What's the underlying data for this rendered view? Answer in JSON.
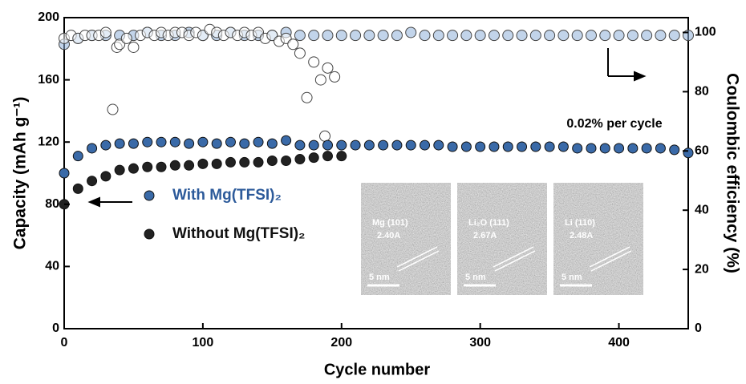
{
  "chart_data": {
    "type": "scatter",
    "xlabel": "Cycle number",
    "ylabel": "Capacity (mAh g⁻¹)",
    "y2label": "Coulombic efficiency (%)",
    "xlim": [
      0,
      450
    ],
    "xticks": [
      0,
      100,
      200,
      300,
      400
    ],
    "ylim": [
      0,
      200
    ],
    "yticks": [
      0,
      40,
      80,
      120,
      160,
      200
    ],
    "y2lim": [
      0,
      105
    ],
    "y2ticks": [
      0,
      20,
      40,
      60,
      80,
      100
    ],
    "annotations": [
      "0.02% per cycle"
    ],
    "insets": [
      {
        "labels": [
          "Mg (101)",
          "2.40A",
          "5 nm"
        ]
      },
      {
        "labels": [
          "Li₂O (111)",
          "2.67A",
          "5 nm"
        ]
      },
      {
        "labels": [
          "Li (110)",
          "2.48A",
          "5 nm"
        ]
      }
    ],
    "series": [
      {
        "color": "#8fb0d8",
        "marker": "open",
        "axis": "y2",
        "x": [
          0,
          10,
          20,
          30,
          40,
          50,
          60,
          70,
          80,
          90,
          100,
          110,
          120,
          130,
          140,
          150,
          160,
          170,
          180,
          190,
          200,
          210,
          220,
          230,
          240,
          250,
          260,
          270,
          280,
          290,
          300,
          310,
          320,
          330,
          340,
          350,
          360,
          370,
          380,
          390,
          400,
          410,
          420,
          430,
          440,
          450
        ],
        "values": [
          96,
          98,
          99,
          99,
          99,
          99,
          100,
          99,
          99,
          100,
          99,
          99,
          100,
          99,
          99,
          99,
          100,
          99,
          99,
          99,
          99,
          99,
          99,
          99,
          99,
          100,
          99,
          99,
          99,
          99,
          99,
          99,
          99,
          99,
          99,
          99,
          99,
          99,
          99,
          99,
          99,
          99,
          99,
          99,
          99,
          99
        ]
      },
      {
        "color": "#555555",
        "marker": "open",
        "axis": "y2",
        "x": [
          0,
          5,
          10,
          15,
          20,
          25,
          30,
          35,
          38,
          40,
          45,
          50,
          55,
          60,
          65,
          70,
          75,
          80,
          85,
          90,
          95,
          100,
          105,
          110,
          115,
          120,
          125,
          130,
          135,
          140,
          145,
          150,
          155,
          160,
          165,
          170,
          175,
          180,
          185,
          188,
          190,
          195
        ],
        "values": [
          98,
          99,
          98,
          99,
          99,
          99,
          100,
          74,
          95,
          96,
          98,
          95,
          99,
          100,
          99,
          100,
          99,
          100,
          100,
          99,
          100,
          99,
          101,
          100,
          99,
          100,
          99,
          100,
          99,
          100,
          98,
          99,
          97,
          98,
          96,
          93,
          78,
          90,
          84,
          65,
          88,
          85
        ]
      },
      {
        "name": "With Mg(TFSI)₂",
        "color": "#3a6aa8",
        "marker": "filled",
        "label_color": "#2c5a9a",
        "x": [
          0,
          10,
          20,
          30,
          40,
          50,
          60,
          70,
          80,
          90,
          100,
          110,
          120,
          130,
          140,
          150,
          160,
          170,
          180,
          190,
          200,
          210,
          220,
          230,
          240,
          250,
          260,
          270,
          280,
          290,
          300,
          310,
          320,
          330,
          340,
          350,
          360,
          370,
          380,
          390,
          400,
          410,
          420,
          430,
          440,
          450
        ],
        "values": [
          100,
          111,
          116,
          118,
          119,
          119,
          120,
          120,
          120,
          119,
          120,
          119,
          120,
          119,
          120,
          119,
          121,
          118,
          118,
          118,
          118,
          118,
          118,
          118,
          118,
          118,
          118,
          118,
          117,
          117,
          117,
          117,
          117,
          117,
          117,
          117,
          117,
          116,
          116,
          116,
          116,
          116,
          116,
          116,
          115,
          113
        ]
      },
      {
        "name": "Without Mg(TFSI)₂",
        "color": "#222222",
        "marker": "filled",
        "label_color": "#111111",
        "x": [
          0,
          10,
          20,
          30,
          40,
          50,
          60,
          70,
          80,
          90,
          100,
          110,
          120,
          130,
          140,
          150,
          160,
          170,
          180,
          190,
          200
        ],
        "values": [
          80,
          90,
          95,
          98,
          102,
          103,
          104,
          104,
          105,
          105,
          106,
          106,
          107,
          107,
          107,
          108,
          108,
          109,
          110,
          111,
          111
        ]
      }
    ]
  }
}
